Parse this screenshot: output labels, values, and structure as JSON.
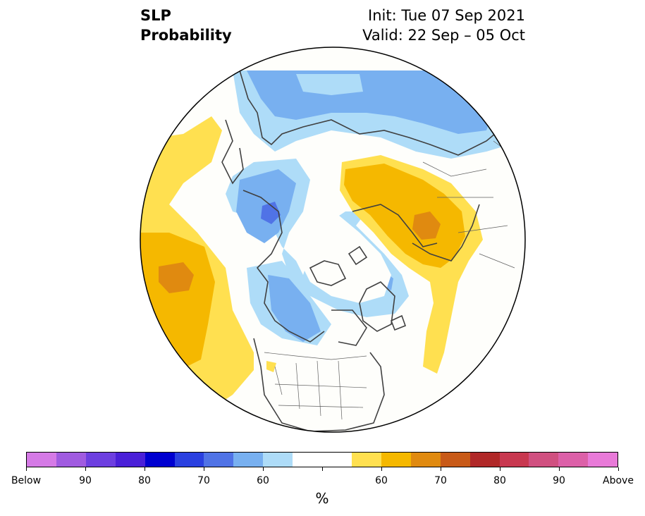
{
  "title": {
    "left_line1": "SLP",
    "left_line2": "Probability",
    "right_line1": "Init: Tue 07 Sep 2021",
    "right_line2": "Valid: 22 Sep – 05 Oct"
  },
  "colorbar": {
    "unit": "%",
    "colors": [
      "#d57ae6",
      "#a05be0",
      "#6d3fe0",
      "#4a20d8",
      "#0000d0",
      "#2a40e0",
      "#5073e6",
      "#78b0f0",
      "#aedcf8",
      "#ffffff",
      "#ffffff",
      "#ffe050",
      "#f5b800",
      "#e08a10",
      "#c85a18",
      "#b02828",
      "#c83850",
      "#d05080",
      "#dc60a8",
      "#e87ad8"
    ],
    "ticks": [
      {
        "label": "Below",
        "index": 0
      },
      {
        "label": "90",
        "index": 2
      },
      {
        "label": "80",
        "index": 4
      },
      {
        "label": "70",
        "index": 6
      },
      {
        "label": "60",
        "index": 8
      },
      {
        "label": "",
        "index": 10
      },
      {
        "label": "60",
        "index": 12
      },
      {
        "label": "70",
        "index": 14
      },
      {
        "label": "80",
        "index": 16
      },
      {
        "label": "90",
        "index": 18
      },
      {
        "label": "Above",
        "index": 20
      }
    ]
  },
  "map": {
    "projection": "north polar stereographic",
    "regions": [
      {
        "name": "north-atlantic-above",
        "category": "above",
        "level": "55-60"
      },
      {
        "name": "north-atlantic-above-core",
        "category": "above",
        "level": "65-70"
      },
      {
        "name": "siberia-below",
        "category": "below",
        "level": "55-60"
      },
      {
        "name": "siberia-below-core",
        "category": "below",
        "level": "60-65"
      },
      {
        "name": "pacific-below",
        "category": "below",
        "level": "55-60"
      },
      {
        "name": "pacific-below-core",
        "category": "below",
        "level": "65-70"
      },
      {
        "name": "europe-above",
        "category": "above",
        "level": "55-60"
      },
      {
        "name": "europe-above-core",
        "category": "above",
        "level": "60-65"
      }
    ]
  }
}
